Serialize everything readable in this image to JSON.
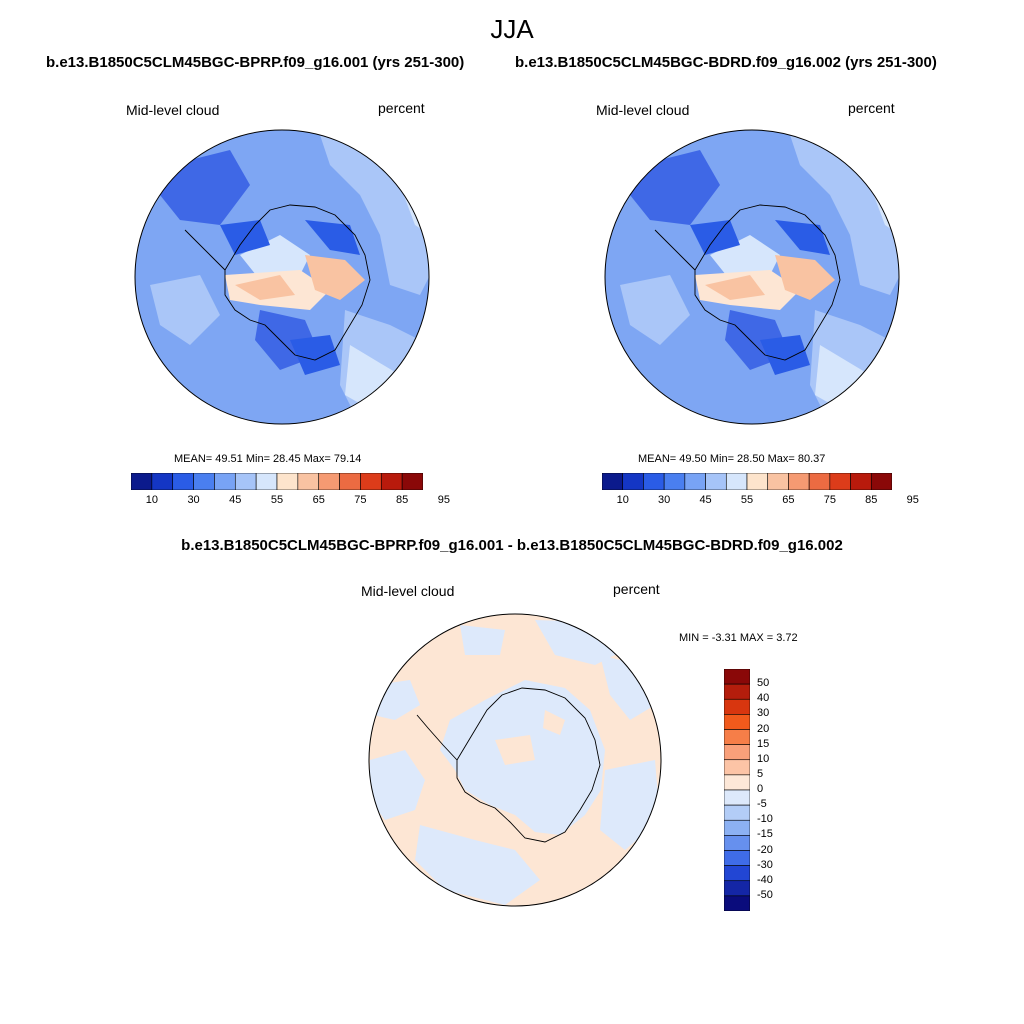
{
  "main_title": "JJA",
  "panels": [
    {
      "case_label": "b.e13.B1850C5CLM45BGC-BPRP.f09_g16.001 (yrs 251-300)",
      "variable": "Mid-level cloud",
      "units": "percent",
      "stats": "MEAN=  49.51  Min=  28.45  Max=  79.14"
    },
    {
      "case_label": "b.e13.B1850C5CLM45BGC-BDRD.f09_g16.002 (yrs 251-300)",
      "variable": "Mid-level cloud",
      "units": "percent",
      "stats": "MEAN=  49.50  Min=  28.50  Max=  80.37"
    }
  ],
  "main_colorbar": {
    "labels": [
      "10",
      "30",
      "45",
      "55",
      "65",
      "75",
      "85",
      "95"
    ],
    "colors": [
      "#0b1a8c",
      "#1436c4",
      "#2a5ce6",
      "#4a7ff0",
      "#78a3f5",
      "#a6c4f8",
      "#d6e6fc",
      "#fde4cc",
      "#f9c3a2",
      "#f59a72",
      "#ec6b42",
      "#dc3c1a",
      "#b81a0c",
      "#8a0808"
    ]
  },
  "difference": {
    "title": "b.e13.B1850C5CLM45BGC-BPRP.f09_g16.001 - b.e13.B1850C5CLM45BGC-BDRD.f09_g16.002",
    "variable": "Mid-level cloud",
    "units": "percent",
    "stats": "MIN =  -3.31 MAX =   3.72",
    "colorbar_labels": [
      "50",
      "40",
      "30",
      "20",
      "15",
      "10",
      "5",
      "0",
      "-5",
      "-10",
      "-15",
      "-20",
      "-30",
      "-40",
      "-50"
    ],
    "colorbar_colors": [
      "#8a0808",
      "#b41d0c",
      "#d8360f",
      "#f15a1c",
      "#f67e48",
      "#f9a07a",
      "#fcc4a6",
      "#fde8d8",
      "#dde9fb",
      "#b3cdf7",
      "#8cb1f3",
      "#6690ee",
      "#3f6ce8",
      "#2246d4",
      "#1426a6",
      "#0a0c7c"
    ]
  },
  "colors": {
    "ocean_blue": "#7ea6f3",
    "light_blue": "#aac6f8",
    "pale_blue": "#d6e6fc",
    "dark_blue": "#3f68e6",
    "peach": "#fde6d4",
    "coast": "#000000"
  }
}
